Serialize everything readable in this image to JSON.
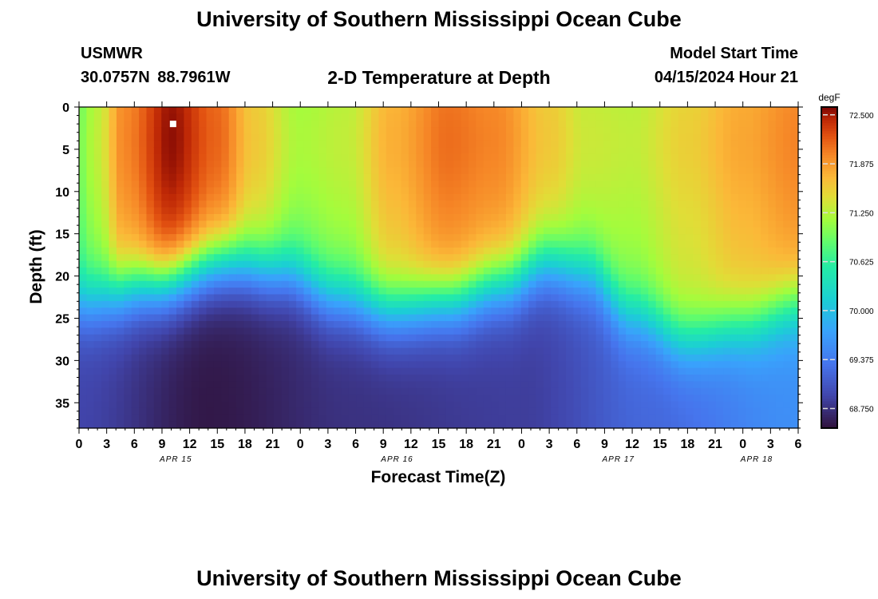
{
  "header": {
    "title": "University of Southern Mississippi Ocean Cube",
    "station_name": "USMWR",
    "station_coords": "30.0757N  88.7961W",
    "plot_title": "2-D Temperature at Depth",
    "model_start_label": "Model Start Time",
    "model_start_value": "04/15/2024 Hour 21"
  },
  "footer": {
    "title": "University of Southern Mississippi Ocean Cube"
  },
  "colors": {
    "background": "#ffffff",
    "marker": "#ffffff",
    "axis": "#000000"
  },
  "chart_data": {
    "type": "heatmap",
    "title": "2-D Temperature at Depth",
    "xlabel": "Forecast Time(Z)",
    "ylabel": "Depth (ft)",
    "x_range_hours": [
      0,
      78
    ],
    "ylim": [
      0,
      38
    ],
    "y_ticks": [
      0,
      5,
      10,
      15,
      20,
      25,
      30,
      35
    ],
    "x_tick_labels": [
      "0",
      "3",
      "6",
      "9",
      "12",
      "15",
      "18",
      "21",
      "0",
      "3",
      "6",
      "9",
      "12",
      "15",
      "18",
      "21",
      "0",
      "3",
      "6",
      "9",
      "12",
      "15",
      "18",
      "21",
      "0",
      "3",
      "6"
    ],
    "date_labels": [
      {
        "label": "APR 15",
        "hour": 10.5
      },
      {
        "label": "APR 16",
        "hour": 34.5
      },
      {
        "label": "APR 17",
        "hour": 58.5
      },
      {
        "label": "APR 18",
        "hour": 73.5
      }
    ],
    "colorbar": {
      "unit": "degF",
      "min": 68.5,
      "max": 72.6,
      "tick_values": [
        72.5,
        71.875,
        71.25,
        70.625,
        70.0,
        69.375,
        68.75
      ],
      "tick_labels": [
        "72.500",
        "71.875",
        "71.250",
        "70.625",
        "70.000",
        "69.375",
        "68.750"
      ]
    },
    "thermocline_depth_ft": [
      {
        "hour": 0,
        "depth": 23.0
      },
      {
        "hour": 8,
        "depth": 21.0
      },
      {
        "hour": 16,
        "depth": 18.5
      },
      {
        "hour": 22,
        "depth": 19.5
      },
      {
        "hour": 28,
        "depth": 22.5
      },
      {
        "hour": 34,
        "depth": 24.0
      },
      {
        "hour": 40,
        "depth": 23.0
      },
      {
        "hour": 46,
        "depth": 21.0
      },
      {
        "hour": 51,
        "depth": 18.5
      },
      {
        "hour": 55,
        "depth": 19.5
      },
      {
        "hour": 60,
        "depth": 24.5
      },
      {
        "hour": 66,
        "depth": 27.5
      },
      {
        "hour": 72,
        "depth": 26.0
      },
      {
        "hour": 78,
        "depth": 23.5
      }
    ],
    "surface_temperature_degF": [
      {
        "hour": 0,
        "value": 71.0
      },
      {
        "hour": 2,
        "value": 71.3
      },
      {
        "hour": 5,
        "value": 72.0
      },
      {
        "hour": 10,
        "value": 72.55
      },
      {
        "hour": 15,
        "value": 72.15
      },
      {
        "hour": 19,
        "value": 71.6
      },
      {
        "hour": 24,
        "value": 71.2
      },
      {
        "hour": 29,
        "value": 71.3
      },
      {
        "hour": 34,
        "value": 71.75
      },
      {
        "hour": 40,
        "value": 72.1
      },
      {
        "hour": 45,
        "value": 72.0
      },
      {
        "hour": 51,
        "value": 71.6
      },
      {
        "hour": 55,
        "value": 71.35
      },
      {
        "hour": 60,
        "value": 71.3
      },
      {
        "hour": 66,
        "value": 71.55
      },
      {
        "hour": 72,
        "value": 71.8
      },
      {
        "hour": 78,
        "value": 72.0
      }
    ],
    "bottom_temperature_degF": [
      {
        "hour": 0,
        "value": 68.9
      },
      {
        "hour": 14,
        "value": 68.55
      },
      {
        "hour": 30,
        "value": 68.75
      },
      {
        "hour": 48,
        "value": 68.85
      },
      {
        "hour": 62,
        "value": 69.2
      },
      {
        "hour": 78,
        "value": 69.55
      }
    ],
    "marker": {
      "hour": 10.2,
      "depth_ft": 2.0
    }
  }
}
